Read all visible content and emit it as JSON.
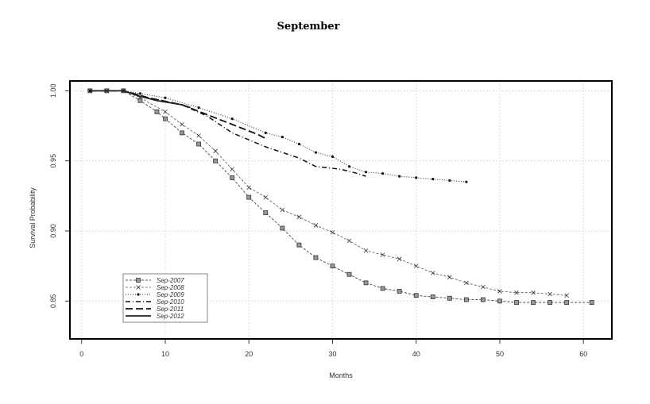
{
  "chart_data": {
    "type": "line",
    "title": "September",
    "xlabel": "Months",
    "ylabel": "Survival Probability",
    "xlim": [
      -1.4,
      63.4
    ],
    "ylim": [
      0.823,
      1.007
    ],
    "xticks": [
      0,
      10,
      20,
      30,
      40,
      50,
      60
    ],
    "yticks": [
      0.85,
      0.9,
      0.95,
      1.0
    ],
    "ytick_labels": [
      "0.85",
      "0.90",
      "0.95",
      "1.00"
    ],
    "grid": true,
    "legend_placement": "bottom-left",
    "series": [
      {
        "name": "Sep-2007",
        "style": "dashed-square",
        "x": [
          1,
          3,
          5,
          7,
          9,
          10,
          12,
          14,
          16,
          18,
          20,
          22,
          24,
          26,
          28,
          30,
          32,
          34,
          36,
          38,
          40,
          42,
          44,
          46,
          48,
          50,
          52,
          54,
          56,
          58,
          61
        ],
        "y": [
          1,
          1,
          1,
          0.993,
          0.985,
          0.98,
          0.97,
          0.962,
          0.95,
          0.938,
          0.924,
          0.913,
          0.902,
          0.89,
          0.881,
          0.875,
          0.869,
          0.863,
          0.859,
          0.857,
          0.854,
          0.853,
          0.852,
          0.851,
          0.851,
          0.85,
          0.849,
          0.849,
          0.849,
          0.849,
          0.849
        ]
      },
      {
        "name": "Sep-2008",
        "style": "dashed-x",
        "x": [
          1,
          3,
          5,
          7,
          10,
          12,
          14,
          16,
          18,
          20,
          22,
          24,
          26,
          28,
          30,
          32,
          34,
          36,
          38,
          40,
          42,
          44,
          46,
          48,
          50,
          52,
          54,
          56,
          58
        ],
        "y": [
          1,
          1,
          1,
          0.995,
          0.985,
          0.976,
          0.968,
          0.957,
          0.944,
          0.931,
          0.924,
          0.915,
          0.91,
          0.904,
          0.899,
          0.893,
          0.886,
          0.883,
          0.88,
          0.875,
          0.87,
          0.867,
          0.863,
          0.86,
          0.857,
          0.856,
          0.856,
          0.855,
          0.854
        ]
      },
      {
        "name": "Sep-2009",
        "style": "dotted-dot",
        "x": [
          1,
          5,
          7,
          10,
          14,
          18,
          22,
          24,
          26,
          28,
          30,
          32,
          34,
          36,
          38,
          40,
          42,
          44,
          46
        ],
        "y": [
          1,
          1,
          0.998,
          0.995,
          0.988,
          0.98,
          0.97,
          0.967,
          0.962,
          0.956,
          0.953,
          0.946,
          0.942,
          0.941,
          0.939,
          0.938,
          0.937,
          0.936,
          0.935
        ]
      },
      {
        "name": "Sep-2010",
        "style": "dashdot",
        "x": [
          1,
          5,
          8,
          12,
          15,
          18,
          22,
          26,
          28,
          31,
          33,
          34
        ],
        "y": [
          1,
          1,
          0.995,
          0.99,
          0.982,
          0.97,
          0.96,
          0.952,
          0.946,
          0.944,
          0.941,
          0.939
        ]
      },
      {
        "name": "Sep-2011",
        "style": "longdash",
        "x": [
          1,
          5,
          8,
          12,
          15,
          18,
          21,
          22
        ],
        "y": [
          1,
          1,
          0.995,
          0.99,
          0.983,
          0.976,
          0.969,
          0.966
        ]
      },
      {
        "name": "Sep-2012",
        "style": "solid",
        "x": [
          1,
          5,
          7,
          9,
          12,
          13
        ],
        "y": [
          1,
          1,
          0.996,
          0.993,
          0.99,
          0.988
        ]
      }
    ]
  }
}
